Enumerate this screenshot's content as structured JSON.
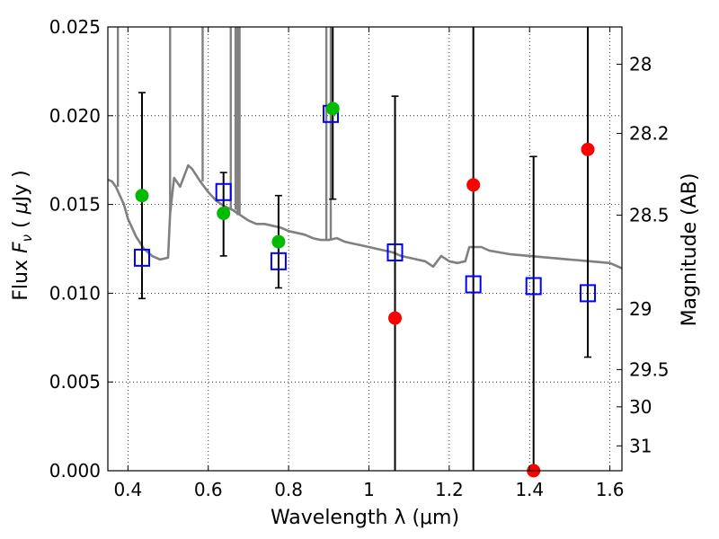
{
  "chart_data": {
    "type": "scatter",
    "title": "",
    "xlabel": "Wavelength  λ (μm)",
    "ylabel": "Flux  F_ν  ( μJy )",
    "ylabel_parts": {
      "pre": "Flux  ",
      "var": "F",
      "sub": "ν",
      "unit_open": "  ( ",
      "unit_mu": "μ",
      "unit_rest": "Jy )"
    },
    "y2label": "Magnitude (AB)",
    "xlim": [
      0.35,
      1.63
    ],
    "ylim": [
      0.0,
      0.025
    ],
    "xticks": [
      0.4,
      0.6,
      0.8,
      1.0,
      1.2,
      1.4,
      1.6
    ],
    "xtick_labels": [
      "0.4",
      "0.6",
      "0.8",
      "1",
      "1.2",
      "1.4",
      "1.6"
    ],
    "yticks": [
      0.0,
      0.005,
      0.01,
      0.015,
      0.02,
      0.025
    ],
    "ytick_labels": [
      "0.000",
      "0.005",
      "0.010",
      "0.015",
      "0.020",
      "0.025"
    ],
    "y2_ticks": [
      {
        "label": "28",
        "flux": 0.0229
      },
      {
        "label": "28.2",
        "flux": 0.019
      },
      {
        "label": "28.5",
        "flux": 0.0144
      },
      {
        "label": "29",
        "flux": 0.0091
      },
      {
        "label": "29.5",
        "flux": 0.0057
      },
      {
        "label": "30",
        "flux": 0.0036
      },
      {
        "label": "31",
        "flux": 0.0014
      }
    ],
    "grid": true,
    "colors": {
      "spectrum": "#808080",
      "model": "#0000ff",
      "observed_green": "#00bb00",
      "observed_red": "#ff0000",
      "errorbar": "#000000"
    },
    "series": [
      {
        "marker": "square-open",
        "color": "#0000ff",
        "x": [
          0.435,
          0.638,
          0.775,
          0.905,
          1.065,
          1.26,
          1.41,
          1.545
        ],
        "y": [
          0.012,
          0.0157,
          0.0118,
          0.0201,
          0.0123,
          0.0105,
          0.0104,
          0.01
        ]
      },
      {
        "marker": "circle",
        "color": "#00bb00",
        "x": [
          0.435,
          0.638,
          0.775,
          0.91
        ],
        "y": [
          0.0155,
          0.0145,
          0.0129,
          0.0204
        ]
      },
      {
        "marker": "circle",
        "color": "#ff0000",
        "x": [
          1.065,
          1.26,
          1.41,
          1.545
        ],
        "y": [
          0.0086,
          0.0161,
          0.0,
          0.0181
        ]
      }
    ],
    "errorbars": [
      {
        "x": 0.435,
        "low": 0.0097,
        "high": 0.0213
      },
      {
        "x": 0.638,
        "low": 0.0121,
        "high": 0.0168
      },
      {
        "x": 0.775,
        "low": 0.0103,
        "high": 0.0155
      },
      {
        "x": 0.91,
        "low": 0.0153,
        "high": 0.03
      },
      {
        "x": 1.065,
        "low": 0.0,
        "high": 0.0211
      },
      {
        "x": 1.26,
        "low": 0.0,
        "high": 0.03
      },
      {
        "x": 1.41,
        "low": 0.0,
        "high": 0.0177
      },
      {
        "x": 1.545,
        "low": 0.0064,
        "high": 0.03
      }
    ],
    "spectrum": {
      "x": [
        0.35,
        0.36,
        0.37,
        0.38,
        0.39,
        0.4,
        0.42,
        0.44,
        0.46,
        0.48,
        0.5,
        0.505,
        0.51,
        0.515,
        0.53,
        0.55,
        0.56,
        0.58,
        0.6,
        0.62,
        0.64,
        0.66,
        0.68,
        0.7,
        0.72,
        0.74,
        0.76,
        0.78,
        0.8,
        0.82,
        0.84,
        0.86,
        0.88,
        0.9,
        0.92,
        0.94,
        0.96,
        0.98,
        1.0,
        1.02,
        1.04,
        1.06,
        1.08,
        1.1,
        1.12,
        1.14,
        1.16,
        1.18,
        1.2,
        1.22,
        1.24,
        1.25,
        1.26,
        1.28,
        1.3,
        1.35,
        1.4,
        1.45,
        1.5,
        1.55,
        1.6,
        1.63
      ],
      "y": [
        0.0164,
        0.0163,
        0.016,
        0.0155,
        0.015,
        0.0142,
        0.0132,
        0.0125,
        0.0121,
        0.0119,
        0.012,
        0.0145,
        0.0155,
        0.0165,
        0.016,
        0.0172,
        0.017,
        0.0163,
        0.0157,
        0.0152,
        0.0149,
        0.0147,
        0.0144,
        0.0141,
        0.0139,
        0.0139,
        0.0138,
        0.0137,
        0.0135,
        0.0134,
        0.0133,
        0.0131,
        0.013,
        0.013,
        0.0131,
        0.0129,
        0.0128,
        0.0127,
        0.0126,
        0.0125,
        0.0124,
        0.0123,
        0.0121,
        0.012,
        0.0119,
        0.0118,
        0.0115,
        0.0121,
        0.0118,
        0.0117,
        0.0118,
        0.0126,
        0.0126,
        0.0126,
        0.0124,
        0.0122,
        0.0121,
        0.012,
        0.0119,
        0.0118,
        0.0117,
        0.0114
      ]
    },
    "spectrum_lines": [
      {
        "x": 0.375,
        "top": 0.025
      },
      {
        "x": 0.505,
        "top": 0.025
      },
      {
        "x": 0.586,
        "top": 0.025
      },
      {
        "x": 0.656,
        "top": 0.025
      },
      {
        "x": 0.668,
        "top": 0.025
      },
      {
        "x": 0.673,
        "top": 0.025
      },
      {
        "x": 0.678,
        "top": 0.025
      },
      {
        "x": 0.894,
        "top": 0.025
      },
      {
        "x": 0.905,
        "top": 0.025
      }
    ]
  }
}
